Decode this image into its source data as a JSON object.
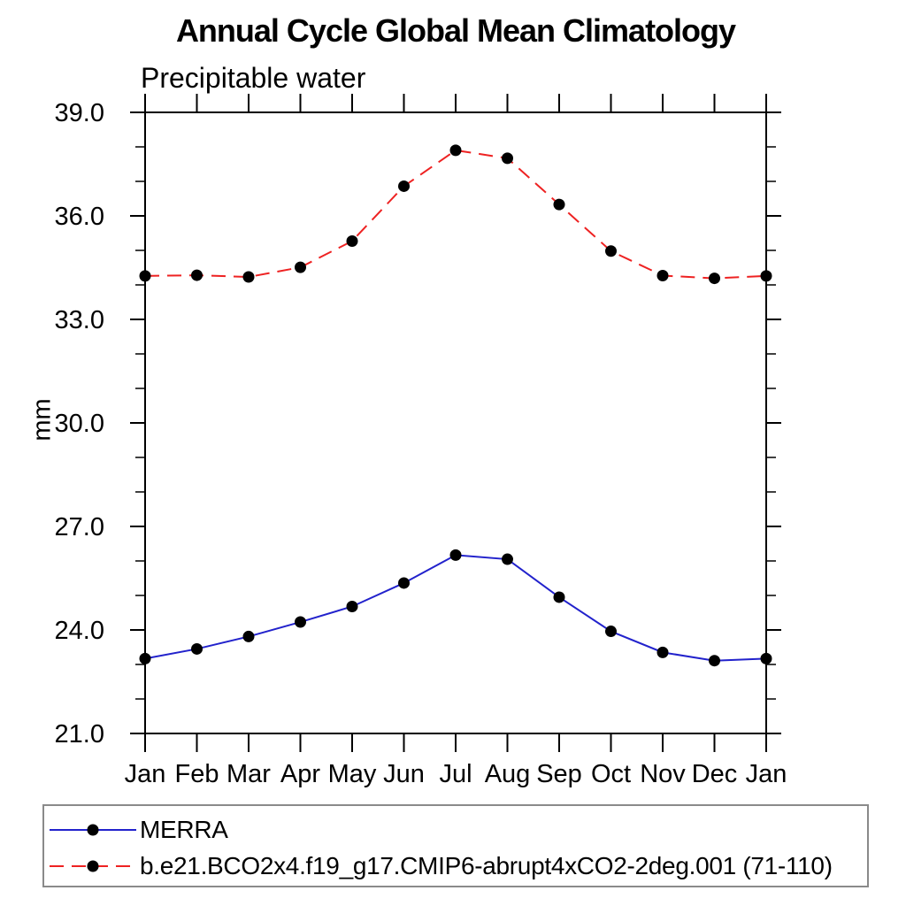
{
  "header": {
    "title": "Annual Cycle Global Mean Climatology",
    "subtitle": "Precipitable water"
  },
  "chart_data": {
    "type": "line",
    "title": "Annual Cycle Global Mean Climatology",
    "subtitle": "Precipitable water",
    "ylabel": "mm",
    "xlabel": "",
    "x_categories": [
      "Jan",
      "Feb",
      "Mar",
      "Apr",
      "May",
      "Jun",
      "Jul",
      "Aug",
      "Sep",
      "Oct",
      "Nov",
      "Dec",
      "Jan"
    ],
    "ylim": [
      21.0,
      39.0
    ],
    "ytick_major": [
      21.0,
      24.0,
      27.0,
      30.0,
      33.0,
      36.0,
      39.0
    ],
    "ytick_labels": [
      "21.0",
      "24.0",
      "27.0",
      "30.0",
      "33.0",
      "36.0",
      "39.0"
    ],
    "ytick_minor_step": 1.0,
    "grid": false,
    "legend_position": "bottom",
    "frame_color": "#000000",
    "marker_color": "#000000",
    "series": [
      {
        "name": "MERRA",
        "color": "#2222cc",
        "style": "solid",
        "marker": "circle",
        "values": [
          23.17,
          23.45,
          23.81,
          24.23,
          24.68,
          25.36,
          26.17,
          26.05,
          24.95,
          23.96,
          23.35,
          23.11,
          23.17
        ]
      },
      {
        "name": "b.e21.BCO2x4.f19_g17.CMIP6-abrupt4xCO2-2deg.001 (71-110)",
        "color": "#ee2222",
        "style": "dashed",
        "marker": "circle",
        "values": [
          34.26,
          34.28,
          34.23,
          34.51,
          35.27,
          36.86,
          37.9,
          37.67,
          36.33,
          34.98,
          34.27,
          34.19,
          34.26
        ]
      }
    ]
  }
}
